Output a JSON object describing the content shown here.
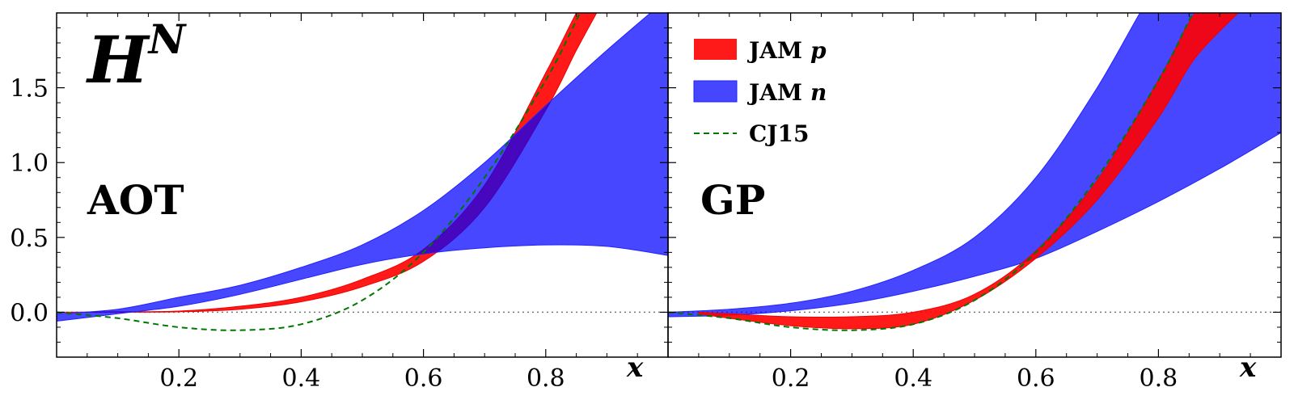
{
  "chart_data": {
    "type": "area",
    "title": "H",
    "title_sup": "N",
    "xlabel": "x",
    "xlim": [
      0,
      1
    ],
    "ylim": [
      -0.3,
      2.0
    ],
    "xticks": [
      0.2,
      0.4,
      0.6,
      0.8
    ],
    "xtick_labels": [
      "0.2",
      "0.4",
      "0.6",
      "0.8"
    ],
    "yticks": [
      0.0,
      0.5,
      1.0,
      1.5
    ],
    "ytick_labels": [
      "0.0",
      "0.5",
      "1.0",
      "1.5"
    ],
    "grid": false,
    "reference_line_y": 0.0,
    "legend": {
      "placement": "top-left of right panel",
      "entries": [
        {
          "key": "jam_p",
          "label": "JAM",
          "italic": "p",
          "color": "#ff0000",
          "style": "band"
        },
        {
          "key": "jam_n",
          "label": "JAM",
          "italic": "n",
          "color": "#0000ff",
          "style": "band"
        },
        {
          "key": "cj15",
          "label": "CJ15",
          "color": "#007700",
          "style": "dashed"
        }
      ]
    },
    "panels": [
      {
        "label": "AOT",
        "bands": [
          {
            "key": "jam_p",
            "x": [
              0.01,
              0.1,
              0.2,
              0.3,
              0.4,
              0.5,
              0.6,
              0.7,
              0.8,
              0.85,
              0.89
            ],
            "lower": [
              0.0,
              0.0,
              0.003,
              0.02,
              0.07,
              0.17,
              0.34,
              0.7,
              1.35,
              1.75,
              2.05
            ],
            "upper": [
              0.0,
              0.003,
              0.008,
              0.04,
              0.1,
              0.22,
              0.42,
              0.85,
              1.6,
              2.0,
              2.3
            ]
          },
          {
            "key": "jam_n",
            "x": [
              0.0,
              0.1,
              0.2,
              0.3,
              0.4,
              0.5,
              0.6,
              0.7,
              0.8,
              0.9,
              1.0
            ],
            "lower": [
              -0.06,
              -0.01,
              0.04,
              0.12,
              0.22,
              0.32,
              0.39,
              0.43,
              0.45,
              0.44,
              0.38
            ],
            "upper": [
              -0.01,
              0.02,
              0.1,
              0.18,
              0.3,
              0.45,
              0.68,
              1.0,
              1.38,
              1.75,
              2.1
            ]
          }
        ],
        "curve": {
          "key": "cj15",
          "x": [
            0.0,
            0.1,
            0.2,
            0.3,
            0.4,
            0.5,
            0.6,
            0.7,
            0.8,
            0.85,
            0.88
          ],
          "y": [
            0.0,
            -0.04,
            -0.1,
            -0.12,
            -0.08,
            0.08,
            0.4,
            0.9,
            1.55,
            1.95,
            2.2
          ]
        }
      },
      {
        "label": "GP",
        "bands": [
          {
            "key": "jam_n",
            "x": [
              0.0,
              0.1,
              0.2,
              0.3,
              0.4,
              0.5,
              0.6,
              0.7,
              0.8,
              0.9,
              1.0
            ],
            "lower": [
              -0.03,
              -0.02,
              0.01,
              0.06,
              0.14,
              0.24,
              0.36,
              0.54,
              0.74,
              0.96,
              1.2
            ],
            "upper": [
              0.0,
              0.02,
              0.06,
              0.14,
              0.28,
              0.5,
              0.9,
              1.5,
              2.2,
              2.7,
              3.0
            ]
          },
          {
            "key": "jam_p",
            "x": [
              0.05,
              0.1,
              0.2,
              0.3,
              0.4,
              0.5,
              0.6,
              0.7,
              0.8,
              0.86,
              0.93
            ],
            "lower": [
              -0.01,
              -0.04,
              -0.09,
              -0.11,
              -0.08,
              0.08,
              0.36,
              0.75,
              1.3,
              1.7,
              2.0
            ],
            "upper": [
              0.0,
              -0.01,
              -0.03,
              -0.03,
              0.0,
              0.12,
              0.41,
              0.88,
              1.55,
              2.0,
              2.3
            ]
          }
        ],
        "curve": {
          "key": "cj15",
          "x": [
            0.0,
            0.1,
            0.2,
            0.3,
            0.4,
            0.5,
            0.6,
            0.7,
            0.8,
            0.85,
            0.88
          ],
          "y": [
            0.0,
            -0.04,
            -0.1,
            -0.12,
            -0.08,
            0.08,
            0.4,
            0.9,
            1.55,
            1.95,
            2.2
          ]
        }
      }
    ]
  }
}
